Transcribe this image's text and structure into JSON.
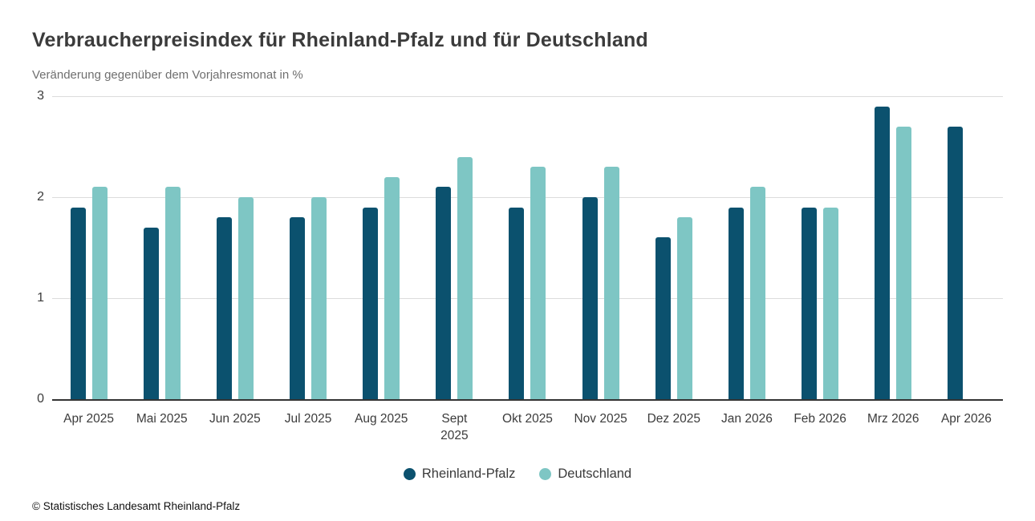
{
  "header": {
    "title": "Verbraucherpreisindex für Rheinland-Pfalz und für Deutschland",
    "subtitle": "Veränderung gegenüber dem Vorjahresmonat in %"
  },
  "chart_data": {
    "type": "bar",
    "title": "Verbraucherpreisindex für Rheinland-Pfalz und für Deutschland",
    "subtitle": "Veränderung gegenüber dem Vorjahresmonat in %",
    "categories": [
      "Apr 2025",
      "Mai 2025",
      "Jun 2025",
      "Jul 2025",
      "Aug 2025",
      "Sept\n2025",
      "Okt 2025",
      "Nov 2025",
      "Dez 2025",
      "Jan 2026",
      "Feb 2026",
      "Mrz 2026",
      "Apr 2026"
    ],
    "series": [
      {
        "name": "Rheinland-Pfalz",
        "color": "#0b516e",
        "values": [
          1.9,
          1.7,
          1.8,
          1.8,
          1.9,
          2.1,
          1.9,
          2.0,
          1.6,
          1.9,
          1.9,
          2.9,
          2.7
        ]
      },
      {
        "name": "Deutschland",
        "color": "#7ec6c4",
        "values": [
          2.1,
          2.1,
          2.0,
          2.0,
          2.2,
          2.4,
          2.3,
          2.3,
          1.8,
          2.1,
          1.9,
          2.7,
          null
        ]
      }
    ],
    "xlabel": "",
    "ylabel": "Veränderung gegenüber dem Vorjahresmonat in %",
    "ylim": [
      0,
      3
    ],
    "yticks": [
      0,
      1,
      2,
      3
    ],
    "grid": true,
    "legend_position": "bottom",
    "colors": {
      "axis_line": "#333333",
      "gridline": "#dcdcdc",
      "text": "#3b3b3b"
    }
  },
  "footer": {
    "copyright": "© Statistisches Landesamt Rheinland-Pfalz"
  }
}
